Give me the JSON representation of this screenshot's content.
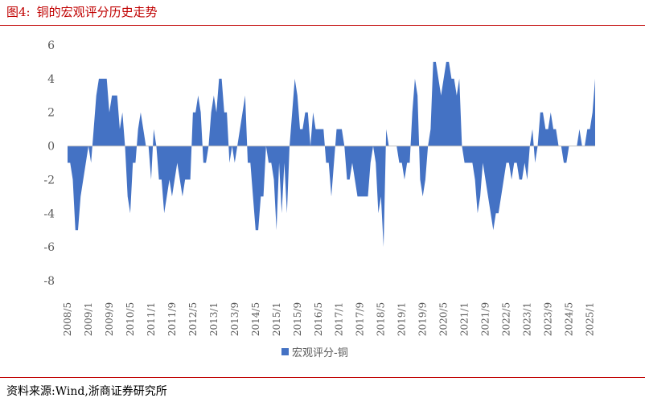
{
  "figure": {
    "label": "图4:",
    "title": "铜的宏观评分历史走势",
    "source": "资料来源:Wind,浙商证券研究所"
  },
  "chart_data": {
    "type": "area",
    "title": "铜的宏观评分历史走势",
    "xlabel": "",
    "ylabel": "",
    "ylim": [
      -8,
      6
    ],
    "yticks": [
      6,
      4,
      2,
      0,
      -2,
      -4,
      -6,
      -8
    ],
    "x_tick_labels": [
      "2008/5",
      "2009/1",
      "2009/9",
      "2010/5",
      "2011/1",
      "2011/9",
      "2012/5",
      "2013/1",
      "2013/9",
      "2014/5",
      "2015/1",
      "2015/9",
      "2016/5",
      "2017/1",
      "2017/9",
      "2018/5",
      "2019/1",
      "2019/9",
      "2020/5",
      "2021/1",
      "2021/9",
      "2022/5",
      "2023/1",
      "2023/9",
      "2024/5",
      "2025/1"
    ],
    "x_start": "2008/5",
    "x_end": "2025/12",
    "legend": "bottom",
    "grid": false,
    "color": "#4472c4",
    "series": [
      {
        "name": "宏观评分-铜",
        "values": [
          -1,
          -1,
          -2,
          -5,
          -5,
          -3,
          -2,
          -1,
          0,
          -1,
          1,
          3,
          4,
          4,
          4,
          4,
          2,
          3,
          3,
          3,
          1,
          2,
          0,
          -3,
          -4,
          -1,
          -1,
          1,
          2,
          1,
          0,
          0,
          -2,
          1,
          0,
          -2,
          -2,
          -4,
          -3,
          -2,
          -3,
          -2,
          -1,
          -2,
          -3,
          -2,
          -2,
          -2,
          2,
          2,
          3,
          2,
          -1,
          -1,
          0,
          2,
          3,
          2,
          4,
          4,
          2,
          2,
          -1,
          0,
          -1,
          0,
          1,
          2,
          3,
          -1,
          -1,
          -3,
          -5,
          -5,
          -3,
          -3,
          0,
          -1,
          -1,
          -2,
          -5,
          -1,
          -4,
          -1,
          -4,
          0,
          2,
          4,
          3,
          1,
          1,
          2,
          2,
          0,
          2,
          1,
          1,
          1,
          1,
          -1,
          -1,
          -3,
          -1,
          1,
          1,
          1,
          0,
          -2,
          -2,
          -1,
          -2,
          -3,
          -3,
          -3,
          -3,
          -3,
          -1,
          0,
          -1,
          -4,
          -3,
          -6,
          1,
          0,
          0,
          0,
          0,
          -1,
          -1,
          -2,
          -1,
          -1,
          2,
          4,
          3,
          -2,
          -3,
          -2,
          0,
          1,
          5,
          5,
          4,
          3,
          4,
          5,
          5,
          4,
          4,
          3,
          4,
          0,
          -1,
          -1,
          -1,
          -1,
          -2,
          -4,
          -3,
          -1,
          -2,
          -3,
          -4,
          -5,
          -4,
          -4,
          -3,
          -2,
          -1,
          -1,
          -2,
          -1,
          -1,
          -2,
          -2,
          -1,
          -2,
          0,
          1,
          -1,
          0,
          2,
          2,
          1,
          1,
          2,
          1,
          1,
          0,
          0,
          -1,
          -1,
          0,
          0,
          0,
          0,
          1,
          0,
          0,
          1,
          1,
          2,
          4
        ]
      }
    ]
  }
}
